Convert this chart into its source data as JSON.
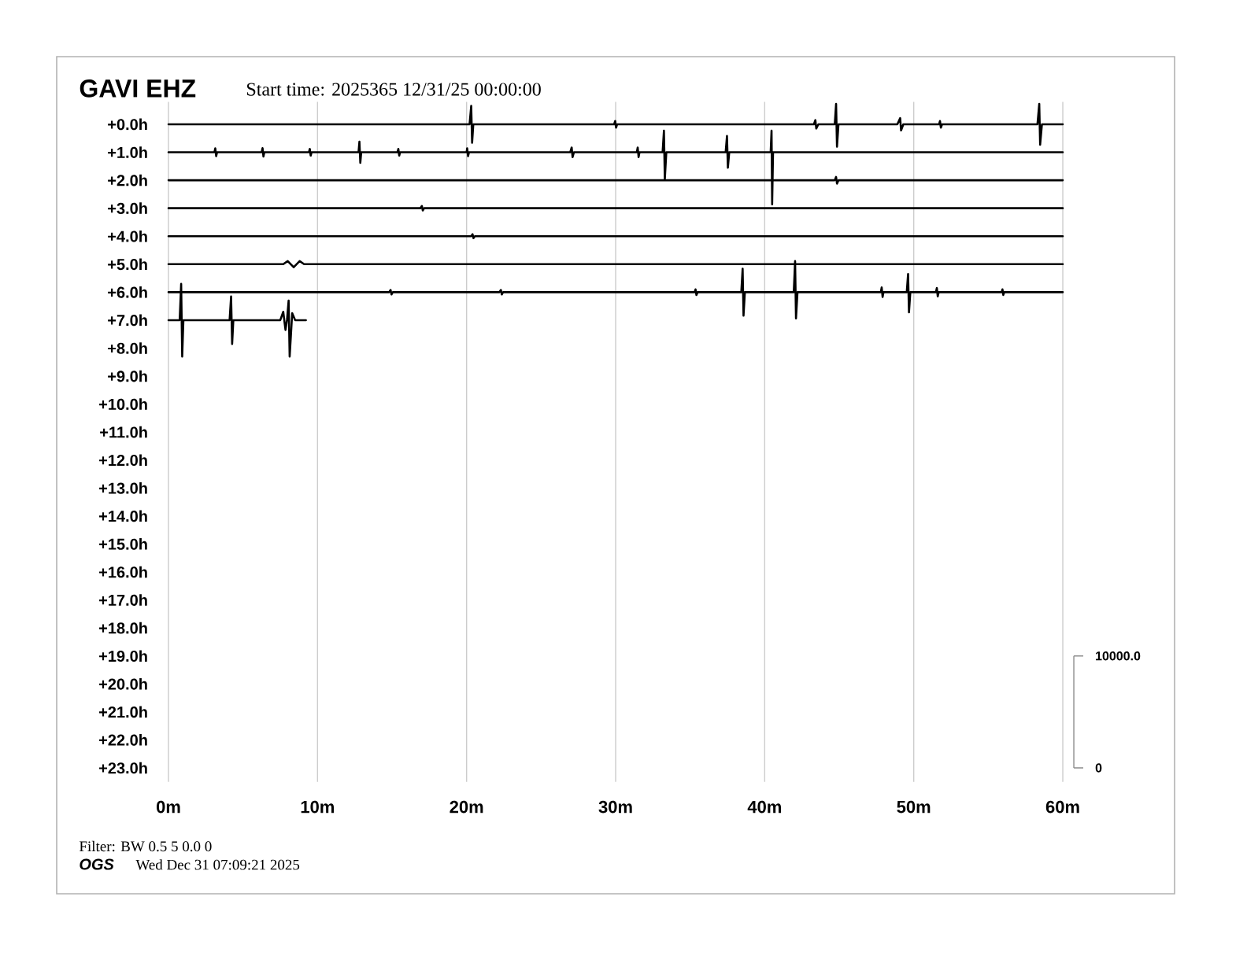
{
  "chart_data": {
    "type": "line",
    "title": "GAVI EHZ",
    "subtitle": "Start time: 2025365 12/31/25 00:00:00",
    "annotations": [
      "Filter: BW 0.5 5 0.0 0",
      "OGS",
      "Wed Dec 31 07:09:21 2025"
    ],
    "xlim": [
      0,
      60
    ],
    "xticks": [
      {
        "value": 0,
        "label": "0m"
      },
      {
        "value": 10,
        "label": "10m"
      },
      {
        "value": 20,
        "label": "20m"
      },
      {
        "value": 30,
        "label": "30m"
      },
      {
        "value": 40,
        "label": "40m"
      },
      {
        "value": 50,
        "label": "50m"
      },
      {
        "value": 60,
        "label": "60m"
      }
    ],
    "ylim": [
      23.5,
      -0.8
    ],
    "yticks": [
      {
        "value": 0,
        "label": "+0.0h"
      },
      {
        "value": 1,
        "label": "+1.0h"
      },
      {
        "value": 2,
        "label": "+2.0h"
      },
      {
        "value": 3,
        "label": "+3.0h"
      },
      {
        "value": 4,
        "label": "+4.0h"
      },
      {
        "value": 5,
        "label": "+5.0h"
      },
      {
        "value": 6,
        "label": "+6.0h"
      },
      {
        "value": 7,
        "label": "+7.0h"
      },
      {
        "value": 8,
        "label": "+8.0h"
      },
      {
        "value": 9,
        "label": "+9.0h"
      },
      {
        "value": 10,
        "label": "+10.0h"
      },
      {
        "value": 11,
        "label": "+11.0h"
      },
      {
        "value": 12,
        "label": "+12.0h"
      },
      {
        "value": 13,
        "label": "+13.0h"
      },
      {
        "value": 14,
        "label": "+14.0h"
      },
      {
        "value": 15,
        "label": "+15.0h"
      },
      {
        "value": 16,
        "label": "+16.0h"
      },
      {
        "value": 17,
        "label": "+17.0h"
      },
      {
        "value": 18,
        "label": "+18.0h"
      },
      {
        "value": 19,
        "label": "+19.0h"
      },
      {
        "value": 20,
        "label": "+20.0h"
      },
      {
        "value": 21,
        "label": "+21.0h"
      },
      {
        "value": 22,
        "label": "+22.0h"
      },
      {
        "value": 23,
        "label": "+23.0h"
      }
    ],
    "y2lim": [
      -1250,
      59500
    ],
    "y2ticks": [
      0,
      {
        "value": 10000,
        "label": "10000.0"
      }
    ],
    "grid": "x",
    "marker": "none",
    "series": [
      {
        "color": "#000000",
        "x": [
          0,
          20.2,
          20.31,
          20.37,
          20.45,
          29.9,
          29.97,
          30.03,
          30.1,
          43.3,
          43.4,
          43.46,
          43.6,
          44.7,
          44.79,
          44.85,
          44.95,
          48.9,
          49.09,
          49.15,
          49.3,
          51.7,
          51.76,
          51.82,
          51.9,
          58.3,
          58.42,
          58.48,
          58.6,
          60
        ],
        "values": [
          0,
          0,
          -0.66,
          0.66,
          0,
          0,
          -0.12,
          0.12,
          0,
          0,
          -0.15,
          0.15,
          0,
          0,
          -0.73,
          0.8,
          0,
          0,
          -0.22,
          0.22,
          0,
          0,
          -0.12,
          0.12,
          0,
          0,
          -0.73,
          0.73,
          0,
          0
        ]
      },
      {
        "color": "#000000",
        "x": [
          0,
          3.08,
          3.14,
          3.2,
          3.26,
          6.25,
          6.31,
          6.37,
          6.43,
          9.42,
          9.48,
          9.54,
          9.6,
          12.75,
          12.81,
          12.87,
          12.93,
          15.36,
          15.42,
          15.48,
          15.54,
          20.0,
          20.04,
          20.1,
          20.16,
          26.95,
          27.05,
          27.11,
          27.2,
          31.42,
          31.48,
          31.54,
          31.6,
          33.15,
          33.24,
          33.3,
          33.4,
          37.38,
          37.47,
          37.53,
          37.62,
          40.4,
          40.46,
          40.5,
          40.56,
          60
        ],
        "values": [
          1,
          1,
          0.86,
          1.14,
          1,
          1,
          0.85,
          1.15,
          1,
          1,
          0.88,
          1.12,
          1,
          1,
          0.62,
          1.38,
          1,
          1,
          0.88,
          1.12,
          1,
          1,
          0.86,
          1.14,
          1,
          1,
          0.83,
          1.17,
          1,
          1,
          0.83,
          1.17,
          1,
          1,
          0.23,
          1.96,
          1,
          1,
          0.42,
          1.55,
          1,
          1,
          0.23,
          2.86,
          1,
          1
        ]
      },
      {
        "color": "#000000",
        "x": [
          0,
          44.7,
          44.79,
          44.85,
          44.95,
          60
        ],
        "values": [
          2,
          2,
          1.88,
          2.12,
          2,
          2
        ]
      },
      {
        "color": "#000000",
        "x": [
          0,
          16.9,
          17.0,
          17.06,
          17.15,
          60
        ],
        "values": [
          3,
          3,
          2.92,
          3.08,
          3,
          3
        ]
      },
      {
        "color": "#000000",
        "x": [
          0,
          20.3,
          20.4,
          20.46,
          20.55,
          60
        ],
        "values": [
          4,
          4,
          3.93,
          4.07,
          4,
          4
        ]
      },
      {
        "color": "#000000",
        "x": [
          0,
          7.7,
          8.0,
          8.4,
          8.8,
          9.1,
          60
        ],
        "values": [
          5,
          5,
          4.89,
          5.11,
          4.89,
          5,
          5
        ]
      },
      {
        "color": "#000000",
        "x": [
          0,
          14.8,
          14.9,
          14.96,
          15.05,
          22.2,
          22.3,
          22.36,
          22.45,
          35.3,
          35.36,
          35.42,
          35.5,
          38.43,
          38.52,
          38.58,
          38.67,
          41.95,
          42.04,
          42.1,
          42.2,
          47.79,
          47.85,
          47.91,
          47.97,
          49.53,
          49.62,
          49.68,
          49.77,
          51.49,
          51.55,
          51.61,
          51.67,
          55.9,
          55.95,
          56.01,
          56.07,
          60
        ],
        "values": [
          6,
          6,
          5.92,
          6.08,
          6,
          6,
          5.92,
          6.08,
          6,
          6,
          5.9,
          6.1,
          6,
          6,
          5.16,
          6.84,
          6,
          6,
          4.89,
          6.94,
          6,
          6,
          5.83,
          6.17,
          6,
          6,
          5.35,
          6.72,
          6,
          6,
          5.85,
          6.15,
          6,
          6,
          5.9,
          6.1,
          6,
          6
        ]
      },
      {
        "color": "#000000",
        "x": [
          0,
          0.75,
          0.85,
          0.92,
          1.0,
          4.1,
          4.2,
          4.27,
          4.35,
          7.5,
          7.7,
          7.85,
          7.95,
          8.06,
          8.13,
          8.3,
          8.5,
          9.22
        ],
        "values": [
          7,
          7,
          5.7,
          8.3,
          7,
          7,
          6.15,
          7.85,
          7,
          7,
          6.7,
          7.35,
          7,
          6.3,
          8.3,
          6.75,
          7,
          7
        ]
      }
    ]
  }
}
